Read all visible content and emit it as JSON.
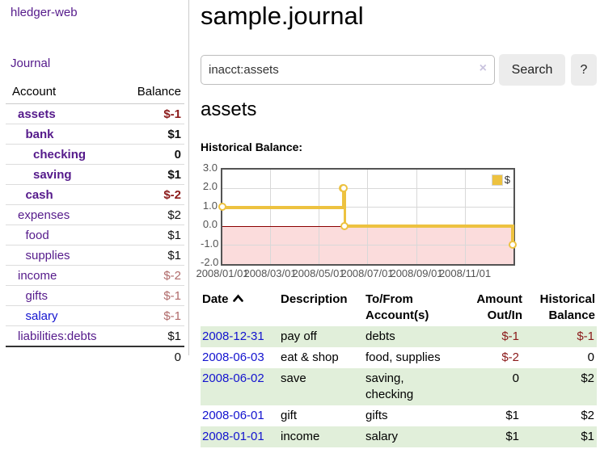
{
  "sidebar": {
    "brand": "hledger-web",
    "journal_link": "Journal",
    "accounts_table": {
      "account_header": "Account",
      "balance_header": "Balance",
      "rows": [
        {
          "name": "assets",
          "level": 0,
          "bold": true,
          "color": "purple",
          "balance": "$-1",
          "balance_class": "neg-strong"
        },
        {
          "name": "bank",
          "level": 1,
          "bold": true,
          "color": "purple",
          "balance": "$1",
          "balance_class": "pos-strong"
        },
        {
          "name": "checking",
          "level": 2,
          "bold": true,
          "color": "purple",
          "balance": "0",
          "balance_class": "pos-strong"
        },
        {
          "name": "saving",
          "level": 2,
          "bold": true,
          "color": "purple",
          "balance": "$1",
          "balance_class": "pos-strong"
        },
        {
          "name": "cash",
          "level": 1,
          "bold": true,
          "color": "purple",
          "balance": "$-2",
          "balance_class": "neg-strong"
        },
        {
          "name": "expenses",
          "level": 0,
          "bold": false,
          "color": "purple",
          "balance": "$2",
          "balance_class": "pos"
        },
        {
          "name": "food",
          "level": 1,
          "bold": false,
          "color": "purple",
          "balance": "$1",
          "balance_class": "pos"
        },
        {
          "name": "supplies",
          "level": 1,
          "bold": false,
          "color": "purple",
          "balance": "$1",
          "balance_class": "pos"
        },
        {
          "name": "income",
          "level": 0,
          "bold": false,
          "color": "purple",
          "balance": "$-2",
          "balance_class": "neg-faded"
        },
        {
          "name": "gifts",
          "level": 1,
          "bold": false,
          "color": "purple",
          "balance": "$-1",
          "balance_class": "neg-faded"
        },
        {
          "name": "salary",
          "level": 1,
          "bold": false,
          "color": "blue",
          "balance": "$-1",
          "balance_class": "neg-faded"
        },
        {
          "name": "liabilities:debts",
          "level": 0,
          "bold": false,
          "color": "purple",
          "balance": "$1",
          "balance_class": "pos"
        }
      ],
      "total": "0"
    }
  },
  "header": {
    "title": "sample.journal"
  },
  "search": {
    "value": "inacct:assets",
    "clear_icon": "×",
    "button_label": "Search",
    "help_label": "?"
  },
  "account_page": {
    "title": "assets",
    "chart_label": "Historical Balance:"
  },
  "chart_data": {
    "type": "line",
    "step": true,
    "title": "Historical Balance",
    "series": [
      {
        "name": "$",
        "color": "#edc240",
        "points": [
          [
            "2008-01-01",
            1
          ],
          [
            "2008-06-01",
            2
          ],
          [
            "2008-06-02",
            2
          ],
          [
            "2008-06-03",
            0
          ],
          [
            "2008-12-31",
            -1
          ]
        ]
      }
    ],
    "xlim": [
      "2008-01-01",
      "2009-01-01"
    ],
    "ylim": [
      -2,
      3
    ],
    "yticks": [
      {
        "v": 3,
        "label": "3.0"
      },
      {
        "v": 2,
        "label": "2.0"
      },
      {
        "v": 1,
        "label": "1.0"
      },
      {
        "v": 0,
        "label": "0.0"
      },
      {
        "v": -1,
        "label": "-1.0"
      },
      {
        "v": -2,
        "label": "-2.0"
      }
    ],
    "xticks": [
      {
        "v": "2008-01-01",
        "label": "2008/01/01"
      },
      {
        "v": "2008-03-01",
        "label": "2008/03/01"
      },
      {
        "v": "2008-05-01",
        "label": "2008/05/01"
      },
      {
        "v": "2008-07-01",
        "label": "2008/07/01"
      },
      {
        "v": "2008-09-01",
        "label": "2008/09/01"
      },
      {
        "v": "2008-11-01",
        "label": "2008/11/01"
      }
    ],
    "grid": true,
    "legend_position": "top-right",
    "negative_region_color": "#fbdcdc",
    "zero_line_color": "#8b0000"
  },
  "register": {
    "columns": [
      {
        "label": "Date",
        "align": "left",
        "sorted": true
      },
      {
        "label": "Description",
        "align": "left",
        "sorted": false
      },
      {
        "label": "To/From Account(s)",
        "align": "left",
        "sorted": false
      },
      {
        "label": "Amount Out/In",
        "align": "right",
        "sorted": false
      },
      {
        "label": "Historical Balance",
        "align": "right",
        "sorted": false
      }
    ],
    "rows": [
      {
        "date": "2008-12-31",
        "description": "pay off",
        "accounts": "debts",
        "amount": "$-1",
        "amount_neg": true,
        "balance": "$-1",
        "balance_neg": true,
        "shaded": true
      },
      {
        "date": "2008-06-03",
        "description": "eat & shop",
        "accounts": "food, supplies",
        "amount": "$-2",
        "amount_neg": true,
        "balance": "0",
        "balance_neg": false,
        "shaded": false
      },
      {
        "date": "2008-06-02",
        "description": "save",
        "accounts": "saving, checking",
        "amount": "0",
        "amount_neg": false,
        "balance": "$2",
        "balance_neg": false,
        "shaded": true
      },
      {
        "date": "2008-06-01",
        "description": "gift",
        "accounts": "gifts",
        "amount": "$1",
        "amount_neg": false,
        "balance": "$2",
        "balance_neg": false,
        "shaded": false
      },
      {
        "date": "2008-01-01",
        "description": "income",
        "accounts": "salary",
        "amount": "$1",
        "amount_neg": false,
        "balance": "$1",
        "balance_neg": false,
        "shaded": true
      }
    ]
  }
}
